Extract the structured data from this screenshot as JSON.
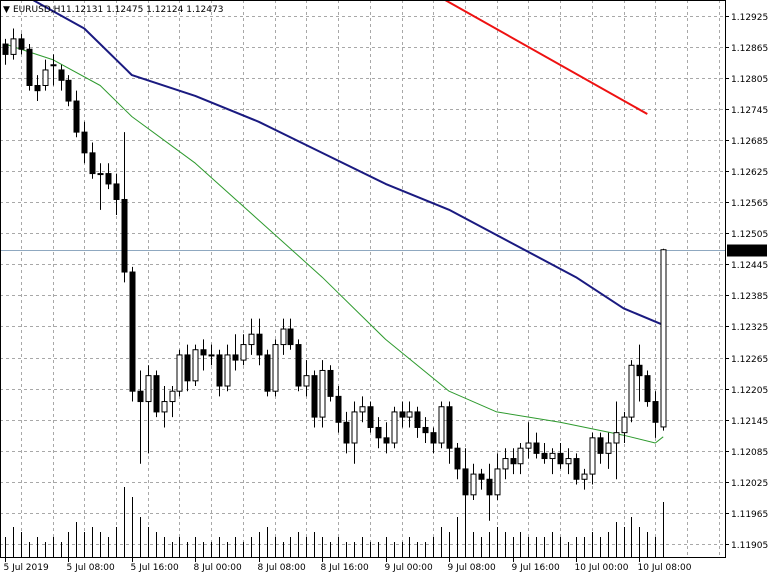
{
  "header": {
    "symbol": "EURUSD,H1",
    "ohlc": "1.12131 1.12475 1.12124 1.12473"
  },
  "current_price": "1.12473",
  "colors": {
    "background": "#ffffff",
    "grid": "#a8a8a8",
    "candle": "#000000",
    "ma_fast": "#2e9a2e",
    "ma_mid": "#1a1a80",
    "ma_slow": "#ee1111",
    "price_line": "#8fa8c0",
    "price_tag_bg": "#000000",
    "price_tag_text": "#ffffff"
  },
  "chart_data": {
    "type": "candlestick",
    "title": "EURUSD,H1",
    "grid": true,
    "ylim": [
      1.1188,
      1.12955
    ],
    "y_ticks": [
      "1.12925",
      "1.12865",
      "1.12805",
      "1.12745",
      "1.12685",
      "1.12625",
      "1.12565",
      "1.12505",
      "1.12445",
      "1.12385",
      "1.12325",
      "1.12265",
      "1.12205",
      "1.12145",
      "1.12085",
      "1.12025",
      "1.11965",
      "1.11905"
    ],
    "x_ticks": [
      {
        "label": "5 Jul 2019",
        "index": 0
      },
      {
        "label": "5 Jul 08:00",
        "index": 8
      },
      {
        "label": "5 Jul 16:00",
        "index": 16
      },
      {
        "label": "8 Jul 00:00",
        "index": 24
      },
      {
        "label": "8 Jul 08:00",
        "index": 32
      },
      {
        "label": "8 Jul 16:00",
        "index": 40
      },
      {
        "label": "9 Jul 00:00",
        "index": 48
      },
      {
        "label": "9 Jul 08:00",
        "index": 56
      },
      {
        "label": "9 Jul 16:00",
        "index": 64
      },
      {
        "label": "10 Jul 00:00",
        "index": 72
      },
      {
        "label": "10 Jul 08:00",
        "index": 80
      }
    ],
    "candles": [
      [
        1.1287,
        1.1288,
        1.1283,
        1.1285
      ],
      [
        1.1285,
        1.129,
        1.1284,
        1.1288
      ],
      [
        1.1288,
        1.1289,
        1.1285,
        1.1286
      ],
      [
        1.1286,
        1.1287,
        1.1278,
        1.1279
      ],
      [
        1.1279,
        1.1281,
        1.1276,
        1.1278
      ],
      [
        1.1279,
        1.1284,
        1.1278,
        1.1282
      ],
      [
        1.1283,
        1.1285,
        1.1279,
        1.1283
      ],
      [
        1.1282,
        1.1283,
        1.1278,
        1.128
      ],
      [
        1.128,
        1.1281,
        1.1275,
        1.1276
      ],
      [
        1.1276,
        1.1278,
        1.1269,
        1.127
      ],
      [
        1.127,
        1.1272,
        1.1264,
        1.1266
      ],
      [
        1.1266,
        1.1268,
        1.1261,
        1.1262
      ],
      [
        1.1262,
        1.1264,
        1.1255,
        1.1262
      ],
      [
        1.1262,
        1.1264,
        1.1259,
        1.126
      ],
      [
        1.126,
        1.1262,
        1.1254,
        1.1257
      ],
      [
        1.1257,
        1.127,
        1.1241,
        1.1243
      ],
      [
        1.1243,
        1.1244,
        1.1218,
        1.122
      ],
      [
        1.122,
        1.1224,
        1.1206,
        1.1218
      ],
      [
        1.1218,
        1.1225,
        1.1208,
        1.1223
      ],
      [
        1.1223,
        1.1224,
        1.1215,
        1.1216
      ],
      [
        1.1216,
        1.1221,
        1.1213,
        1.1218
      ],
      [
        1.1218,
        1.1221,
        1.1215,
        1.122
      ],
      [
        1.122,
        1.1228,
        1.1219,
        1.1227
      ],
      [
        1.1227,
        1.1229,
        1.122,
        1.1222
      ],
      [
        1.1222,
        1.1229,
        1.1221,
        1.1228
      ],
      [
        1.1228,
        1.123,
        1.1224,
        1.1227
      ],
      [
        1.1227,
        1.1229,
        1.1225,
        1.1227
      ],
      [
        1.1227,
        1.1228,
        1.1219,
        1.1221
      ],
      [
        1.1221,
        1.1229,
        1.122,
        1.1227
      ],
      [
        1.1227,
        1.1231,
        1.1224,
        1.1226
      ],
      [
        1.1226,
        1.1231,
        1.1225,
        1.1229
      ],
      [
        1.1229,
        1.1234,
        1.1227,
        1.1231
      ],
      [
        1.1231,
        1.1234,
        1.1225,
        1.1227
      ],
      [
        1.1227,
        1.1228,
        1.1219,
        1.122
      ],
      [
        1.122,
        1.123,
        1.1219,
        1.1229
      ],
      [
        1.1229,
        1.1234,
        1.1227,
        1.1232
      ],
      [
        1.1232,
        1.1234,
        1.1228,
        1.1229
      ],
      [
        1.1229,
        1.123,
        1.122,
        1.1221
      ],
      [
        1.1221,
        1.1226,
        1.1219,
        1.1223
      ],
      [
        1.1223,
        1.1224,
        1.1213,
        1.1215
      ],
      [
        1.1215,
        1.1226,
        1.1213,
        1.1224
      ],
      [
        1.1224,
        1.1225,
        1.1218,
        1.1219
      ],
      [
        1.1219,
        1.1221,
        1.1212,
        1.1214
      ],
      [
        1.1214,
        1.1216,
        1.1208,
        1.121
      ],
      [
        1.121,
        1.1218,
        1.1206,
        1.1216
      ],
      [
        1.1216,
        1.1219,
        1.1214,
        1.1217
      ],
      [
        1.1217,
        1.1218,
        1.1212,
        1.1213
      ],
      [
        1.1213,
        1.1215,
        1.1209,
        1.1211
      ],
      [
        1.1211,
        1.1214,
        1.1208,
        1.121
      ],
      [
        1.121,
        1.1217,
        1.1209,
        1.1216
      ],
      [
        1.1216,
        1.1218,
        1.1213,
        1.1215
      ],
      [
        1.1215,
        1.1218,
        1.1213,
        1.1216
      ],
      [
        1.1216,
        1.1217,
        1.1211,
        1.1213
      ],
      [
        1.1213,
        1.1215,
        1.121,
        1.1212
      ],
      [
        1.1212,
        1.1213,
        1.1208,
        1.121
      ],
      [
        1.121,
        1.1218,
        1.1209,
        1.1217
      ],
      [
        1.1217,
        1.1218,
        1.1206,
        1.1209
      ],
      [
        1.1209,
        1.121,
        1.1203,
        1.1205
      ],
      [
        1.1205,
        1.1209,
        1.1193,
        1.12
      ],
      [
        1.12,
        1.1206,
        1.1199,
        1.1204
      ],
      [
        1.1204,
        1.1205,
        1.1201,
        1.1203
      ],
      [
        1.1203,
        1.1206,
        1.1195,
        1.12
      ],
      [
        1.12,
        1.1208,
        1.1199,
        1.1205
      ],
      [
        1.1205,
        1.1209,
        1.1203,
        1.1207
      ],
      [
        1.1207,
        1.1209,
        1.1204,
        1.1206
      ],
      [
        1.1206,
        1.121,
        1.1204,
        1.1209
      ],
      [
        1.1209,
        1.1214,
        1.1207,
        1.121
      ],
      [
        1.121,
        1.1212,
        1.1207,
        1.1208
      ],
      [
        1.1208,
        1.121,
        1.1206,
        1.1207
      ],
      [
        1.1207,
        1.1209,
        1.1204,
        1.1208
      ],
      [
        1.1208,
        1.121,
        1.1205,
        1.1206
      ],
      [
        1.1206,
        1.1209,
        1.1204,
        1.1207
      ],
      [
        1.1207,
        1.1208,
        1.1202,
        1.1203
      ],
      [
        1.1203,
        1.1205,
        1.1201,
        1.1204
      ],
      [
        1.1204,
        1.1212,
        1.1202,
        1.1211
      ],
      [
        1.1211,
        1.1212,
        1.1206,
        1.1208
      ],
      [
        1.1208,
        1.1212,
        1.1205,
        1.121
      ],
      [
        1.121,
        1.1218,
        1.1203,
        1.1212
      ],
      [
        1.1212,
        1.1216,
        1.121,
        1.1215
      ],
      [
        1.1215,
        1.1226,
        1.1214,
        1.1225
      ],
      [
        1.1225,
        1.1229,
        1.1218,
        1.1223
      ],
      [
        1.1223,
        1.1224,
        1.1217,
        1.1218
      ],
      [
        1.1218,
        1.122,
        1.1211,
        1.1214
      ],
      [
        1.12131,
        1.12475,
        1.12124,
        1.12473
      ]
    ],
    "volumes": [
      4,
      6,
      5,
      3,
      4,
      3,
      4,
      3,
      5,
      7,
      5,
      6,
      5,
      4,
      6,
      14,
      12,
      8,
      6,
      5,
      4,
      3,
      4,
      3,
      4,
      3,
      3,
      4,
      3,
      4,
      3,
      4,
      5,
      6,
      4,
      3,
      4,
      5,
      4,
      5,
      4,
      3,
      4,
      3,
      3,
      4,
      3,
      3,
      4,
      3,
      3,
      4,
      3,
      3,
      4,
      6,
      5,
      8,
      6,
      5,
      4,
      5,
      6,
      5,
      4,
      5,
      4,
      4,
      4,
      5,
      4,
      3,
      4,
      4,
      5,
      4,
      5,
      7,
      6,
      8,
      6,
      5,
      4,
      11
    ],
    "ma_slow": [
      [
        55.5,
        1.12955
      ],
      [
        81,
        1.12735
      ]
    ],
    "ma_mid": [
      [
        0,
        1.12985
      ],
      [
        10,
        1.129
      ],
      [
        16,
        1.1281
      ],
      [
        24,
        1.1277
      ],
      [
        32,
        1.1272
      ],
      [
        40,
        1.1266
      ],
      [
        48,
        1.126
      ],
      [
        56,
        1.1255
      ],
      [
        64,
        1.12485
      ],
      [
        72,
        1.1242
      ],
      [
        78,
        1.1236
      ],
      [
        83,
        1.12328
      ]
    ],
    "ma_fast": [
      [
        0,
        1.1287
      ],
      [
        6,
        1.1284
      ],
      [
        12,
        1.1279
      ],
      [
        16,
        1.1273
      ],
      [
        24,
        1.1264
      ],
      [
        32,
        1.1253
      ],
      [
        40,
        1.1242
      ],
      [
        48,
        1.123
      ],
      [
        56,
        1.122
      ],
      [
        62,
        1.1216
      ],
      [
        70,
        1.1214
      ],
      [
        78,
        1.12115
      ],
      [
        82,
        1.121
      ],
      [
        83,
        1.12112
      ]
    ]
  }
}
